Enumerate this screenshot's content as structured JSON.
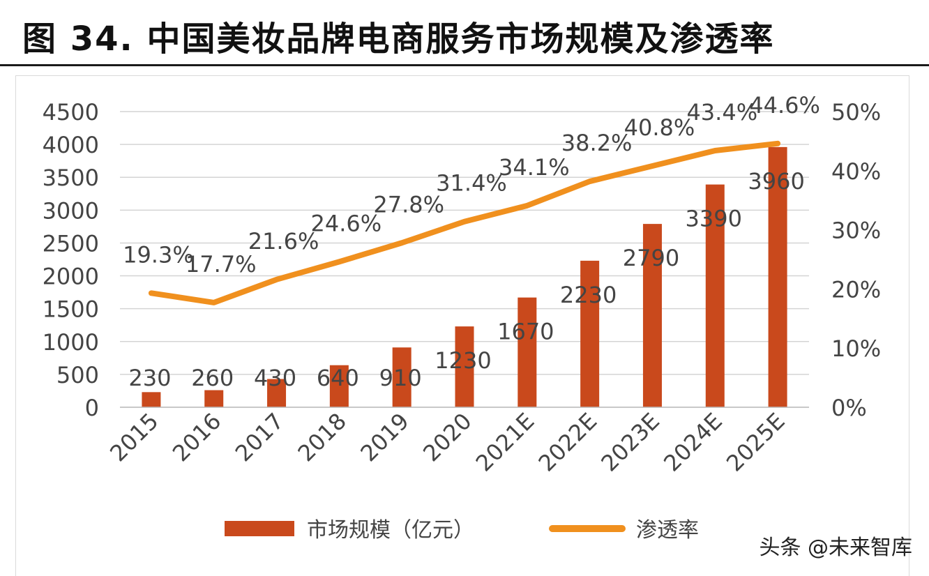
{
  "title": "图 34. 中国美妆品牌电商服务市场规模及渗透率",
  "watermark": "头条 @未来智库",
  "colors": {
    "bar": "#c9491c",
    "line": "#f0901e",
    "grid": "#d4d4d4",
    "text": "#444444"
  },
  "chart_data": {
    "type": "bar+line",
    "categories": [
      "2015",
      "2016",
      "2017",
      "2018",
      "2019",
      "2020",
      "2021E",
      "2022E",
      "2023E",
      "2024E",
      "2025E"
    ],
    "series": [
      {
        "name": "市场规模（亿元）",
        "type": "bar",
        "axis": "left",
        "values": [
          230,
          260,
          430,
          640,
          910,
          1230,
          1670,
          2230,
          2790,
          3390,
          3960
        ],
        "labels": [
          "230",
          "260",
          "430",
          "640",
          "910",
          "1230",
          "1670",
          "2230",
          "2790",
          "3390",
          "3960"
        ]
      },
      {
        "name": "渗透率",
        "type": "line",
        "axis": "right",
        "values": [
          19.3,
          17.7,
          21.6,
          24.6,
          27.8,
          31.4,
          34.1,
          38.2,
          40.8,
          43.4,
          44.6
        ],
        "labels": [
          "19.3%",
          "17.7%",
          "21.6%",
          "24.6%",
          "27.8%",
          "31.4%",
          "34.1%",
          "38.2%",
          "40.8%",
          "43.4%",
          "44.6%"
        ]
      }
    ],
    "y_left": {
      "min": 0,
      "max": 4500,
      "ticks": [
        "0",
        "500",
        "1000",
        "1500",
        "2000",
        "2500",
        "3000",
        "3500",
        "4000",
        "4500"
      ]
    },
    "y_right": {
      "min": 0,
      "max": 50,
      "ticks": [
        "0%",
        "10%",
        "20%",
        "30%",
        "40%",
        "50%"
      ]
    },
    "grid": true,
    "legend": "bottom"
  }
}
